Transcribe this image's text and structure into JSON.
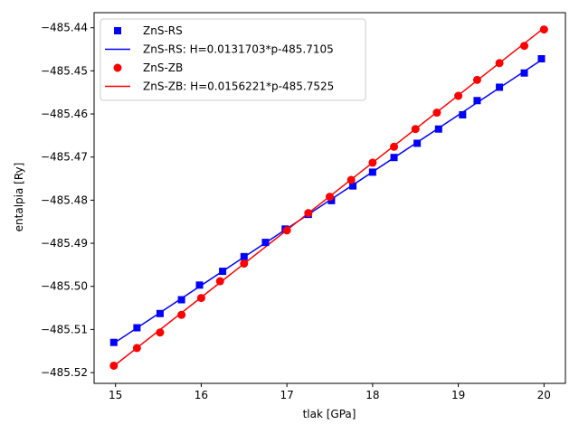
{
  "chart_data": {
    "type": "line",
    "xlabel": "tlak [GPa]",
    "ylabel": "entalpia [Ry]",
    "xlim": [
      14.75,
      20.25
    ],
    "ylim": [
      -485.5225,
      -485.4365
    ],
    "xticks": [
      15,
      16,
      17,
      18,
      19,
      20
    ],
    "yticks": [
      -485.52,
      -485.51,
      -485.5,
      -485.49,
      -485.48,
      -485.47,
      -485.46,
      -485.45,
      -485.44
    ],
    "grid": false,
    "legend_position": "top-left",
    "series": [
      {
        "name": "ZnS-RS",
        "kind": "markers",
        "marker": "square",
        "color": "#0000ff",
        "x": [
          14.98,
          15.25,
          15.52,
          15.77,
          15.98,
          16.25,
          16.5,
          16.75,
          16.98,
          17.25,
          17.52,
          17.77,
          18.0,
          18.25,
          18.52,
          18.77,
          19.05,
          19.22,
          19.48,
          19.77,
          19.97
        ],
        "y": [
          -485.513,
          -485.5096,
          -485.5063,
          -485.5031,
          -485.4997,
          -485.4965,
          -485.4931,
          -485.4898,
          -485.4867,
          -485.4833,
          -485.4801,
          -485.4767,
          -485.4735,
          -485.4701,
          -485.4668,
          -485.4635,
          -485.4602,
          -485.4569,
          -485.4538,
          -485.4505,
          -485.4472
        ]
      },
      {
        "name": "ZnS-RS: H=0.0131703*p-485.7105",
        "kind": "line",
        "color": "#0000ff",
        "slope": 0.0131703,
        "intercept": -485.7105,
        "x": [
          14.98,
          19.97
        ]
      },
      {
        "name": "ZnS-ZB",
        "kind": "markers",
        "marker": "circle",
        "color": "#ff0000",
        "x": [
          14.98,
          15.25,
          15.52,
          15.77,
          16.0,
          16.22,
          16.5,
          17.0,
          17.25,
          17.5,
          17.75,
          18.0,
          18.25,
          18.5,
          18.75,
          19.0,
          19.22,
          19.48,
          19.77,
          20.0
        ],
        "y": [
          -485.5184,
          -485.5143,
          -485.5107,
          -485.5066,
          -485.5027,
          -485.4988,
          -485.4947,
          -485.487,
          -485.483,
          -485.4792,
          -485.4753,
          -485.4713,
          -485.4676,
          -485.4635,
          -485.4597,
          -485.4558,
          -485.4521,
          -485.4482,
          -485.4442,
          -485.4404
        ]
      },
      {
        "name": "ZnS-ZB: H=0.0156221*p-485.7525",
        "kind": "line",
        "color": "#ff0000",
        "slope": 0.0156221,
        "intercept": -485.7525,
        "x": [
          14.98,
          20.0
        ]
      }
    ]
  }
}
